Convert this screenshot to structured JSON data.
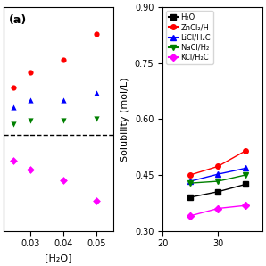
{
  "chart_data": [
    {
      "type": "scatter",
      "annotation": "(a)",
      "x_label": "[H₂O]",
      "x": [
        0.025,
        0.03,
        0.04,
        0.05
      ],
      "series": [
        {
          "color": "#ff0000",
          "marker": "circle",
          "values": [
            0.69,
            0.735,
            0.77,
            0.845
          ]
        },
        {
          "color": "#0000ff",
          "marker": "triangle_up",
          "values": [
            0.635,
            0.655,
            0.655,
            0.675
          ]
        },
        {
          "color": "#008000",
          "marker": "triangle_down",
          "values": [
            0.585,
            0.595,
            0.595,
            0.6
          ]
        },
        {
          "color": "#ff00ff",
          "marker": "diamond",
          "values": [
            0.48,
            0.455,
            0.425,
            0.365
          ]
        }
      ],
      "hline": 0.555,
      "xlim": [
        0.022,
        0.055
      ],
      "xticks": [
        0.03,
        0.04,
        0.05
      ],
      "ylim": [
        0.28,
        0.92
      ],
      "yticks": [],
      "tick_labels": "x"
    },
    {
      "type": "line",
      "y_label": "Solubility (mol/L)",
      "x": [
        25,
        30,
        35
      ],
      "series": [
        {
          "name": "H₂O",
          "color": "#000000",
          "marker": "square",
          "values": [
            0.39,
            0.405,
            0.425
          ]
        },
        {
          "name": "ZnCl₂/H",
          "color": "#ff0000",
          "marker": "circle",
          "values": [
            0.45,
            0.473,
            0.515
          ]
        },
        {
          "name": "LiCl/H₂C",
          "color": "#0000ff",
          "marker": "triangle_up",
          "values": [
            0.433,
            0.452,
            0.468
          ]
        },
        {
          "name": "NaCl/H₂",
          "color": "#008000",
          "marker": "triangle_down",
          "values": [
            0.428,
            0.433,
            0.45
          ]
        },
        {
          "name": "KCl/H₂C",
          "color": "#ff00ff",
          "marker": "diamond",
          "values": [
            0.34,
            0.36,
            0.368
          ]
        }
      ],
      "xlim": [
        20,
        38
      ],
      "xticks": [
        20,
        30
      ],
      "ylim": [
        0.3,
        0.9
      ],
      "yticks": [
        {
          "value": 0.3,
          "label": "0.30"
        },
        0.45,
        {
          "value": 0.6,
          "label": "0.60"
        },
        0.75,
        {
          "value": 0.9,
          "label": "0.90"
        }
      ],
      "legend": "upper left"
    }
  ]
}
